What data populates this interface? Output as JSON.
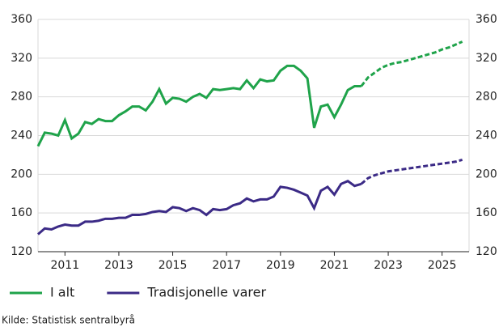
{
  "chart_data": {
    "type": "line",
    "source": "Kilde: Statistisk sentralbyrå",
    "x": [
      2010,
      2010.25,
      2010.5,
      2010.75,
      2011,
      2011.25,
      2011.5,
      2011.75,
      2012,
      2012.25,
      2012.5,
      2012.75,
      2013,
      2013.25,
      2013.5,
      2013.75,
      2014,
      2014.25,
      2014.5,
      2014.75,
      2015,
      2015.25,
      2015.5,
      2015.75,
      2016,
      2016.25,
      2016.5,
      2016.75,
      2017,
      2017.25,
      2017.5,
      2017.75,
      2018,
      2018.25,
      2018.5,
      2018.75,
      2019,
      2019.25,
      2019.5,
      2019.75,
      2020,
      2020.25,
      2020.5,
      2020.75,
      2021,
      2021.25,
      2021.5,
      2021.75,
      2022,
      2022.25,
      2022.5,
      2022.75,
      2023,
      2023.25,
      2023.5,
      2023.75,
      2024,
      2024.25,
      2024.5,
      2024.75,
      2025,
      2025.25,
      2025.5,
      2025.75
    ],
    "forecast_start": 2022,
    "series": [
      {
        "name": "I alt",
        "color": "#1fa34a",
        "values": [
          229,
          243,
          242,
          240,
          256,
          237,
          242,
          254,
          252,
          257,
          255,
          255,
          261,
          265,
          270,
          270,
          266,
          275,
          288,
          273,
          279,
          278,
          275,
          280,
          283,
          279,
          288,
          287,
          288,
          289,
          288,
          297,
          289,
          298,
          296,
          297,
          307,
          312,
          312,
          307,
          299,
          248,
          270,
          272,
          259,
          272,
          287,
          291,
          291,
          300,
          305,
          310,
          313,
          315,
          316,
          318,
          320,
          322,
          324,
          326,
          329,
          331,
          334,
          337
        ]
      },
      {
        "name": "Tradisjonelle varer",
        "color": "#3b2a86",
        "values": [
          138,
          144,
          143,
          146,
          148,
          147,
          147,
          151,
          151,
          152,
          154,
          154,
          155,
          155,
          158,
          158,
          159,
          161,
          162,
          161,
          166,
          165,
          162,
          165,
          163,
          158,
          164,
          163,
          164,
          168,
          170,
          175,
          172,
          174,
          174,
          177,
          187,
          186,
          184,
          181,
          178,
          165,
          183,
          187,
          179,
          190,
          193,
          188,
          190,
          196,
          199,
          201,
          203,
          204,
          205,
          206,
          207,
          208,
          209,
          210,
          211,
          212,
          213,
          215
        ]
      }
    ],
    "xlim": [
      2010,
      2026
    ],
    "xticks": [
      2011,
      2013,
      2015,
      2017,
      2019,
      2021,
      2023,
      2025
    ],
    "ylim": [
      120,
      360
    ],
    "yticks": [
      120,
      160,
      200,
      240,
      280,
      320,
      360
    ],
    "y2lim": [
      120,
      360
    ],
    "y2ticks": [
      120,
      160,
      200,
      240,
      280,
      320,
      360
    ],
    "grid": true
  }
}
